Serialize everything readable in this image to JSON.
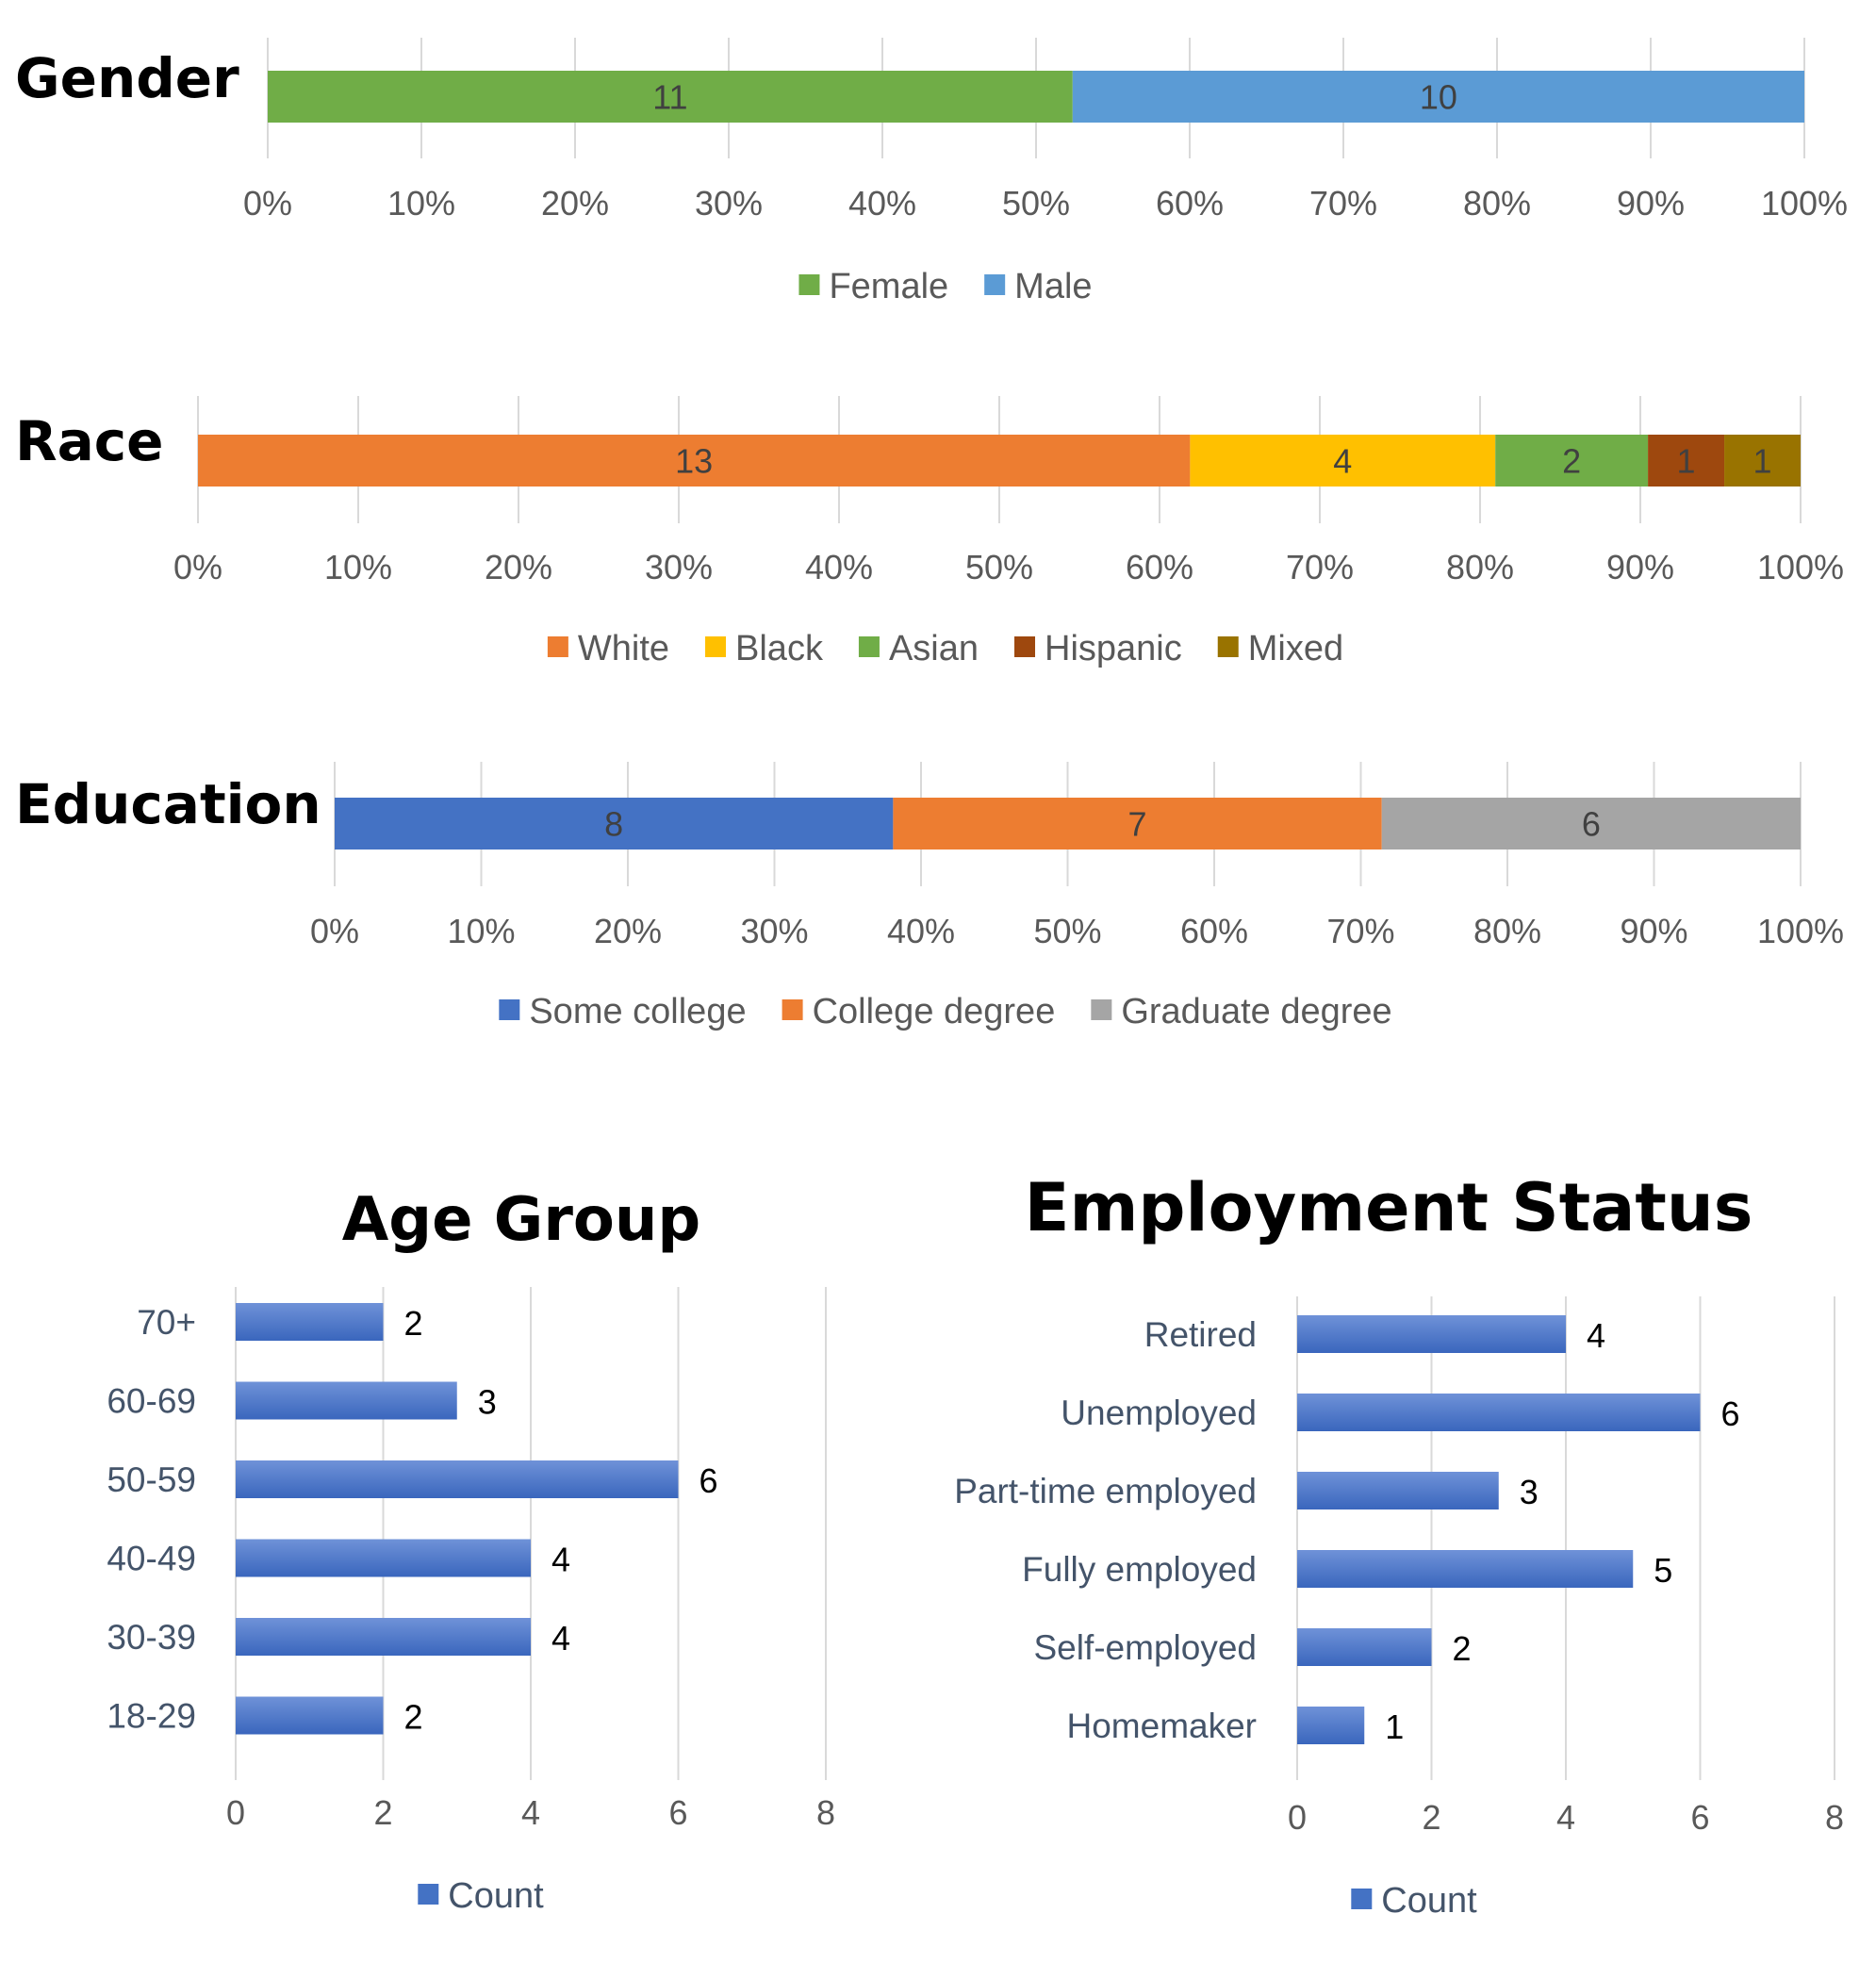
{
  "colors": {
    "female": "#70AD47",
    "male": "#5B9BD5",
    "white": "#ED7D31",
    "black": "#FFC000",
    "asian": "#70AD47",
    "hispanic": "#9E480E",
    "mixed": "#997300",
    "some_college": "#4472C4",
    "college_degree": "#ED7D31",
    "graduate_degree": "#A5A5A5",
    "count_bar": "#4472C4"
  },
  "chart_data": [
    {
      "id": "gender",
      "type": "bar",
      "orientation": "horizontal",
      "stacked": "percent",
      "title": "Gender",
      "categories": [
        "Gender"
      ],
      "series": [
        {
          "name": "Female",
          "values": [
            11
          ],
          "color": "#70AD47"
        },
        {
          "name": "Male",
          "values": [
            10
          ],
          "color": "#5B9BD5"
        }
      ],
      "xlim": [
        0,
        100
      ],
      "xticks": [
        "0%",
        "10%",
        "20%",
        "30%",
        "40%",
        "50%",
        "60%",
        "70%",
        "80%",
        "90%",
        "100%"
      ],
      "legend": "bottom"
    },
    {
      "id": "race",
      "type": "bar",
      "orientation": "horizontal",
      "stacked": "percent",
      "title": "Race",
      "categories": [
        "Race"
      ],
      "series": [
        {
          "name": "White",
          "values": [
            13
          ],
          "color": "#ED7D31"
        },
        {
          "name": "Black",
          "values": [
            4
          ],
          "color": "#FFC000"
        },
        {
          "name": "Asian",
          "values": [
            2
          ],
          "color": "#70AD47"
        },
        {
          "name": "Hispanic",
          "values": [
            1
          ],
          "color": "#9E480E"
        },
        {
          "name": "Mixed",
          "values": [
            1
          ],
          "color": "#997300"
        }
      ],
      "xlim": [
        0,
        100
      ],
      "xticks": [
        "0%",
        "10%",
        "20%",
        "30%",
        "40%",
        "50%",
        "60%",
        "70%",
        "80%",
        "90%",
        "100%"
      ],
      "legend": "bottom"
    },
    {
      "id": "education",
      "type": "bar",
      "orientation": "horizontal",
      "stacked": "percent",
      "title": "Education",
      "categories": [
        "Education"
      ],
      "series": [
        {
          "name": "Some college",
          "values": [
            8
          ],
          "color": "#4472C4"
        },
        {
          "name": "College degree",
          "values": [
            7
          ],
          "color": "#ED7D31"
        },
        {
          "name": "Graduate degree",
          "values": [
            6
          ],
          "color": "#A5A5A5"
        }
      ],
      "xlim": [
        0,
        100
      ],
      "xticks": [
        "0%",
        "10%",
        "20%",
        "30%",
        "40%",
        "50%",
        "60%",
        "70%",
        "80%",
        "90%",
        "100%"
      ],
      "legend": "bottom"
    },
    {
      "id": "age",
      "type": "bar",
      "orientation": "horizontal",
      "title": "Age Group",
      "categories": [
        "70+",
        "60-69",
        "50-59",
        "40-49",
        "30-39",
        "18-29"
      ],
      "values": [
        2,
        3,
        6,
        4,
        4,
        2
      ],
      "series_name": "Count",
      "xlim": [
        0,
        8
      ],
      "xticks": [
        "0",
        "2",
        "4",
        "6",
        "8"
      ],
      "legend": "bottom"
    },
    {
      "id": "employment",
      "type": "bar",
      "orientation": "horizontal",
      "title": "Employment Status",
      "categories": [
        "Retired",
        "Unemployed",
        "Part-time employed",
        "Fully employed",
        "Self-employed",
        "Homemaker"
      ],
      "values": [
        4,
        6,
        3,
        5,
        2,
        1
      ],
      "series_name": "Count",
      "xlim": [
        0,
        8
      ],
      "xticks": [
        "0",
        "2",
        "4",
        "6",
        "8"
      ],
      "legend": "bottom"
    }
  ]
}
